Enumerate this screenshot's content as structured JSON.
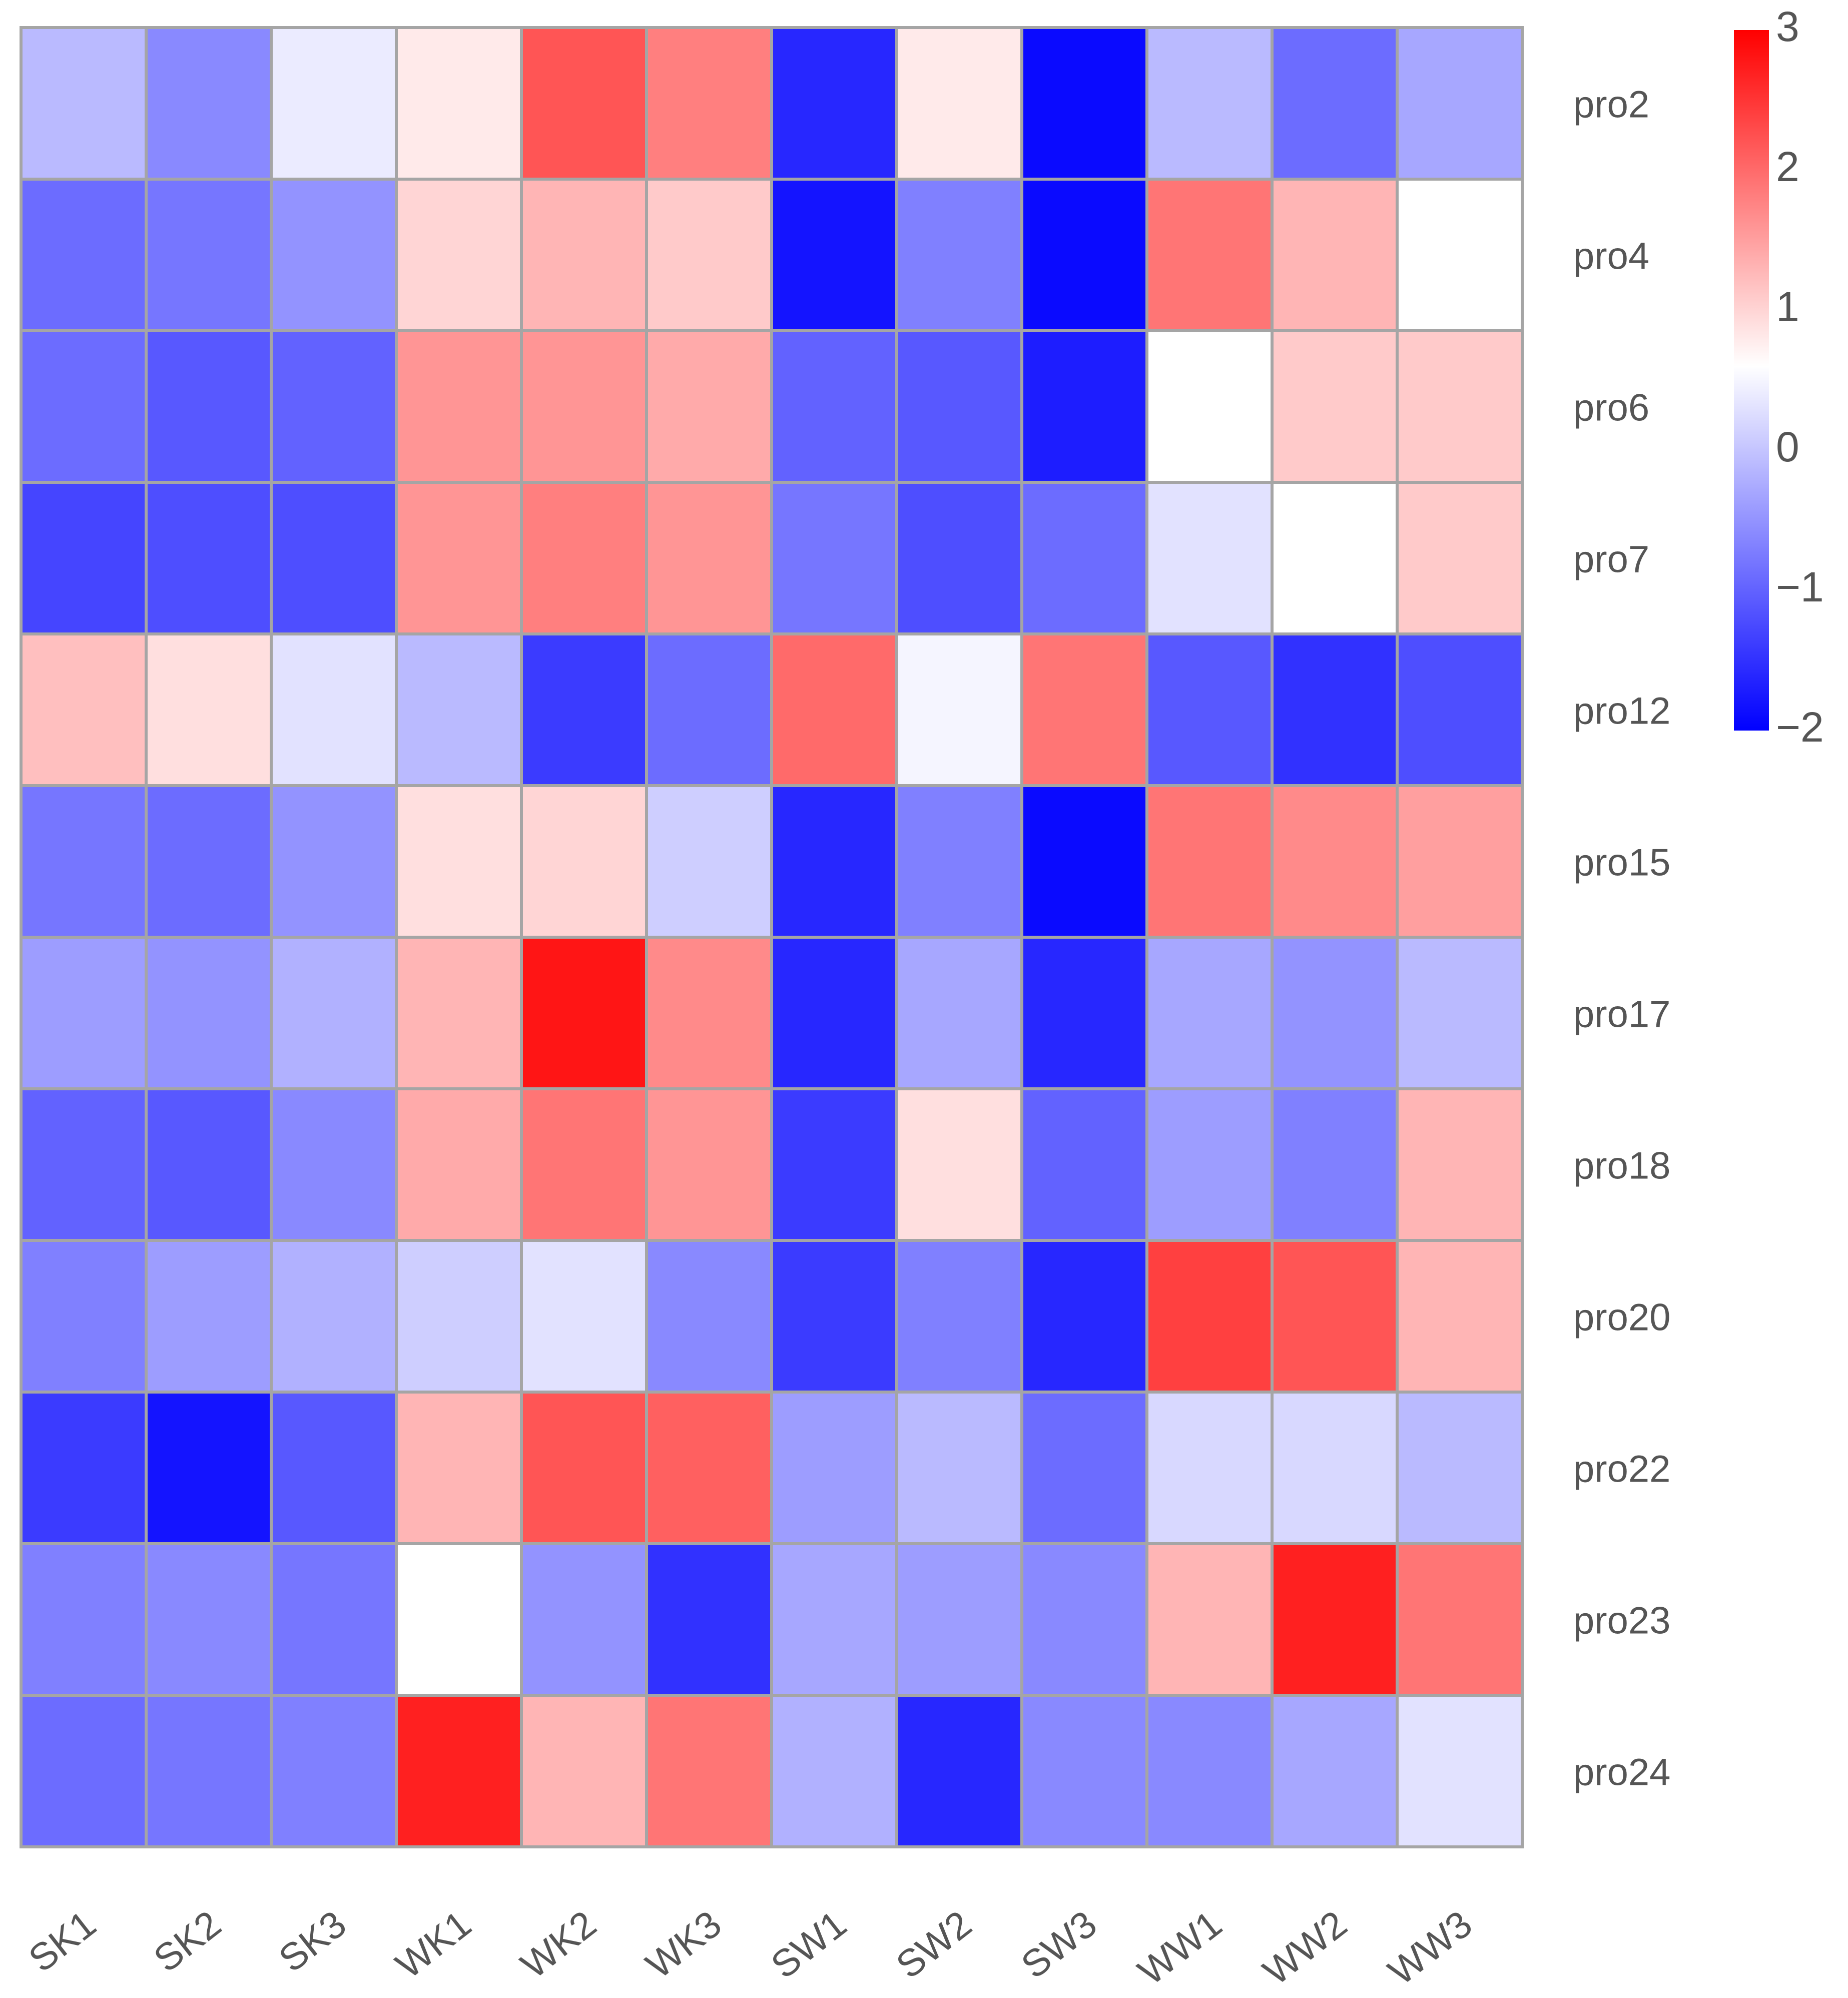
{
  "chart_data": {
    "type": "heatmap",
    "columns": [
      "SK1",
      "SK2",
      "SK3",
      "WK1",
      "WK2",
      "WK3",
      "SW1",
      "SW2",
      "SW3",
      "WW1",
      "WW2",
      "WW3"
    ],
    "rows": [
      "pro2",
      "pro4",
      "pro6",
      "pro7",
      "pro12",
      "pro15",
      "pro17",
      "pro18",
      "pro20",
      "pro22",
      "pro23",
      "pro24"
    ],
    "values": [
      [
        -0.1,
        -0.6,
        0.4,
        0.8,
        2.2,
        1.8,
        -1.6,
        0.8,
        -1.9,
        -0.1,
        -0.9,
        -0.3
      ],
      [
        -0.9,
        -0.8,
        -0.5,
        1.0,
        1.3,
        1.1,
        -1.8,
        -0.7,
        -1.9,
        1.9,
        1.3,
        0.6
      ],
      [
        -0.9,
        -1.1,
        -1.0,
        1.6,
        1.6,
        1.4,
        -1.0,
        -1.1,
        -1.7,
        0.6,
        1.1,
        1.1
      ],
      [
        -1.3,
        -1.2,
        -1.2,
        1.6,
        1.8,
        1.6,
        -0.8,
        -1.2,
        -0.9,
        0.3,
        0.6,
        1.1
      ],
      [
        1.2,
        0.9,
        0.3,
        -0.1,
        -1.4,
        -0.9,
        2.0,
        0.5,
        1.9,
        -1.1,
        -1.5,
        -1.2
      ],
      [
        -0.8,
        -0.9,
        -0.5,
        0.9,
        1.0,
        0.1,
        -1.6,
        -0.7,
        -1.9,
        1.9,
        1.7,
        1.5
      ],
      [
        -0.4,
        -0.5,
        -0.2,
        1.3,
        2.8,
        1.7,
        -1.6,
        -0.3,
        -1.6,
        -0.3,
        -0.5,
        -0.1
      ],
      [
        -1.0,
        -1.1,
        -0.6,
        1.4,
        1.9,
        1.6,
        -1.4,
        0.9,
        -1.0,
        -0.4,
        -0.7,
        1.3
      ],
      [
        -0.7,
        -0.4,
        -0.2,
        0.1,
        0.3,
        -0.6,
        -1.4,
        -0.7,
        -1.6,
        2.4,
        2.2,
        1.3
      ],
      [
        -1.4,
        -1.8,
        -1.1,
        1.3,
        2.2,
        2.1,
        -0.4,
        -0.1,
        -0.9,
        0.2,
        0.2,
        -0.1
      ],
      [
        -0.7,
        -0.6,
        -0.8,
        0.6,
        -0.5,
        -1.5,
        -0.3,
        -0.4,
        -0.6,
        1.3,
        2.7,
        1.9
      ],
      [
        -0.9,
        -0.8,
        -0.7,
        2.7,
        1.3,
        1.9,
        -0.2,
        -1.6,
        -0.6,
        -0.6,
        -0.3,
        0.3
      ]
    ],
    "scale": {
      "min": -2,
      "max": 3,
      "ticks": [
        3,
        2,
        1,
        0,
        -1,
        -2
      ],
      "tick_labels": [
        "3",
        "2",
        "1",
        "0",
        "−1",
        "−2"
      ],
      "colors": {
        "low": "#0000ff",
        "mid": "#ffffff",
        "high": "#ff0000"
      },
      "mid_value": 0.6
    },
    "grid_color": "#a5a5a5"
  }
}
